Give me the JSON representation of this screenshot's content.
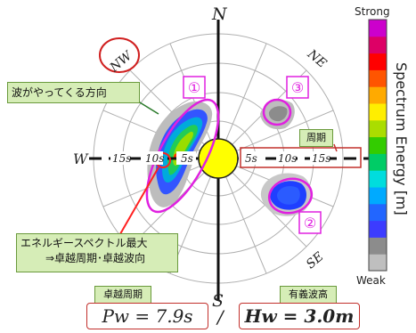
{
  "compass": {
    "n": "N",
    "s": "S",
    "w": "W",
    "nw": "NW",
    "ne": "NE",
    "se": "SE"
  },
  "period_ticks": {
    "left": [
      "15s",
      "10s",
      "5s"
    ],
    "right": [
      "5s",
      "10s",
      "15s"
    ]
  },
  "callouts": {
    "wave_direction": "波がやってくる方向",
    "period": "周期",
    "max_energy_line1": "エネルギースペクトル最大",
    "max_energy_line2": "⇒卓越周期･卓越波向"
  },
  "markers": {
    "one": "①",
    "two": "②",
    "three": "③"
  },
  "colorbar": {
    "top": "Strong",
    "bottom": "Weak",
    "title": "Spectrum Energy [m]",
    "colors": [
      "#bfbfbf",
      "#8c8c8c",
      "#3c3cff",
      "#2266ff",
      "#00aaff",
      "#00dddd",
      "#00cc66",
      "#33cc00",
      "#aadd00",
      "#ffee00",
      "#ffaa00",
      "#ff5500",
      "#ff0000",
      "#dd0066",
      "#cc00cc"
    ]
  },
  "summary": {
    "pw_label": "卓越周期",
    "pw_value": "Pw = 7.9s",
    "separator": "/",
    "hw_label": "有義波高",
    "hw_value": "Hw = 3.0m"
  }
}
